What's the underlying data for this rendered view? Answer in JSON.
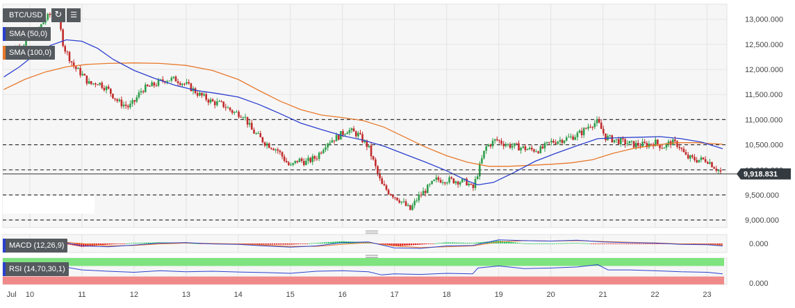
{
  "symbol": "BTC/USD",
  "toolbar": {
    "reload_icon": "reload-icon",
    "settings_icon": "bars-icon"
  },
  "indicators": {
    "sma50": {
      "label": "SMA (50,0)",
      "color": "#2b3fcf"
    },
    "sma100": {
      "label": "SMA (100,0)",
      "color": "#e8782a"
    },
    "macd": {
      "label": "MACD (12,26,9)",
      "axis_label": "0.000"
    },
    "rsi": {
      "label": "RSI (14,70,30,1)",
      "axis_label": "0.000"
    }
  },
  "chart_data": {
    "type": "candlestick",
    "price_axis": {
      "ticks": [
        "13,000.000",
        "12,500.000",
        "12,000.000",
        "11,500.000",
        "11,000.000",
        "10,500.000",
        "10,000.000",
        "9,500.000",
        "9,000.000"
      ],
      "tick_values": [
        13000,
        12500,
        12000,
        11500,
        11000,
        10500,
        10000,
        9500,
        9000
      ],
      "ylim": [
        8850,
        13300
      ]
    },
    "current_price": {
      "value": 9918.831,
      "label": "9,918.831"
    },
    "dashed_levels": [
      11000,
      10500,
      10000,
      9500,
      9000
    ],
    "x_axis": {
      "labels": [
        "Jul",
        "10",
        "11",
        "12",
        "13",
        "14",
        "15",
        "16",
        "17",
        "18",
        "19",
        "20",
        "21",
        "22",
        "23"
      ],
      "label_positions": [
        -0.35,
        0,
        1,
        2,
        3,
        4,
        5,
        6,
        7,
        8,
        9,
        10,
        11,
        12,
        13
      ],
      "xlim": [
        -0.52,
        13.38
      ]
    },
    "price_path": [
      [
        -0.5,
        12350
      ],
      [
        -0.2,
        12450
      ],
      [
        0.1,
        12700
      ],
      [
        0.3,
        13000
      ],
      [
        0.5,
        13200
      ],
      [
        0.55,
        13000
      ],
      [
        0.65,
        12450
      ],
      [
        0.85,
        12050
      ],
      [
        1.0,
        11900
      ],
      [
        1.15,
        11700
      ],
      [
        1.3,
        11750
      ],
      [
        1.5,
        11600
      ],
      [
        1.7,
        11350
      ],
      [
        1.9,
        11250
      ],
      [
        2.0,
        11350
      ],
      [
        2.15,
        11600
      ],
      [
        2.4,
        11700
      ],
      [
        2.6,
        11800
      ],
      [
        2.8,
        11800
      ],
      [
        3.0,
        11700
      ],
      [
        3.25,
        11500
      ],
      [
        3.5,
        11350
      ],
      [
        3.7,
        11300
      ],
      [
        3.9,
        11150
      ],
      [
        4.1,
        11100
      ],
      [
        4.25,
        10800
      ],
      [
        4.5,
        10550
      ],
      [
        4.75,
        10400
      ],
      [
        5.0,
        10050
      ],
      [
        5.15,
        10200
      ],
      [
        5.3,
        10150
      ],
      [
        5.5,
        10250
      ],
      [
        5.7,
        10550
      ],
      [
        5.9,
        10650
      ],
      [
        6.1,
        10800
      ],
      [
        6.3,
        10700
      ],
      [
        6.5,
        10450
      ],
      [
        6.65,
        10000
      ],
      [
        6.75,
        9700
      ],
      [
        6.9,
        9550
      ],
      [
        7.1,
        9400
      ],
      [
        7.3,
        9200
      ],
      [
        7.45,
        9450
      ],
      [
        7.6,
        9600
      ],
      [
        7.8,
        9800
      ],
      [
        8.0,
        9800
      ],
      [
        8.2,
        9780
      ],
      [
        8.4,
        9750
      ],
      [
        8.5,
        9600
      ],
      [
        8.6,
        9950
      ],
      [
        8.75,
        10450
      ],
      [
        8.95,
        10600
      ],
      [
        9.15,
        10500
      ],
      [
        9.4,
        10450
      ],
      [
        9.6,
        10400
      ],
      [
        9.8,
        10400
      ],
      [
        10.0,
        10550
      ],
      [
        10.2,
        10600
      ],
      [
        10.4,
        10650
      ],
      [
        10.6,
        10750
      ],
      [
        10.75,
        10900
      ],
      [
        10.9,
        10950
      ],
      [
        11.05,
        10650
      ],
      [
        11.2,
        10600
      ],
      [
        11.4,
        10550
      ],
      [
        11.6,
        10500
      ],
      [
        11.85,
        10500
      ],
      [
        12.0,
        10550
      ],
      [
        12.15,
        10450
      ],
      [
        12.3,
        10550
      ],
      [
        12.45,
        10500
      ],
      [
        12.6,
        10250
      ],
      [
        12.8,
        10200
      ],
      [
        13.0,
        10200
      ],
      [
        13.15,
        10050
      ],
      [
        13.3,
        9918
      ]
    ],
    "sma50": [
      [
        -0.5,
        11850
      ],
      [
        -0.2,
        12050
      ],
      [
        0.1,
        12300
      ],
      [
        0.4,
        12480
      ],
      [
        0.7,
        12590
      ],
      [
        1.0,
        12560
      ],
      [
        1.3,
        12420
      ],
      [
        1.6,
        12200
      ],
      [
        2.0,
        11980
      ],
      [
        2.4,
        11820
      ],
      [
        2.8,
        11680
      ],
      [
        3.2,
        11580
      ],
      [
        3.6,
        11520
      ],
      [
        4.0,
        11450
      ],
      [
        4.4,
        11300
      ],
      [
        4.8,
        11120
      ],
      [
        5.2,
        10930
      ],
      [
        5.6,
        10800
      ],
      [
        6.0,
        10680
      ],
      [
        6.4,
        10590
      ],
      [
        6.8,
        10470
      ],
      [
        7.2,
        10310
      ],
      [
        7.6,
        10150
      ],
      [
        8.0,
        9980
      ],
      [
        8.4,
        9780
      ],
      [
        8.6,
        9700
      ],
      [
        8.9,
        9750
      ],
      [
        9.3,
        9950
      ],
      [
        9.7,
        10170
      ],
      [
        10.1,
        10330
      ],
      [
        10.5,
        10480
      ],
      [
        10.9,
        10620
      ],
      [
        11.3,
        10640
      ],
      [
        11.7,
        10650
      ],
      [
        12.1,
        10660
      ],
      [
        12.5,
        10620
      ],
      [
        12.9,
        10550
      ],
      [
        13.3,
        10420
      ]
    ],
    "sma100": [
      [
        -0.5,
        11600
      ],
      [
        -0.1,
        11800
      ],
      [
        0.3,
        11950
      ],
      [
        0.7,
        12050
      ],
      [
        1.1,
        12100
      ],
      [
        1.5,
        12120
      ],
      [
        2.0,
        12130
      ],
      [
        2.5,
        12120
      ],
      [
        3.0,
        12080
      ],
      [
        3.5,
        11980
      ],
      [
        4.0,
        11800
      ],
      [
        4.4,
        11580
      ],
      [
        4.8,
        11370
      ],
      [
        5.2,
        11200
      ],
      [
        5.6,
        11090
      ],
      [
        6.0,
        11040
      ],
      [
        6.4,
        10980
      ],
      [
        6.8,
        10850
      ],
      [
        7.2,
        10650
      ],
      [
        7.6,
        10450
      ],
      [
        8.0,
        10280
      ],
      [
        8.4,
        10150
      ],
      [
        8.8,
        10070
      ],
      [
        9.2,
        10070
      ],
      [
        9.6,
        10090
      ],
      [
        10.0,
        10110
      ],
      [
        10.4,
        10140
      ],
      [
        10.8,
        10200
      ],
      [
        11.2,
        10330
      ],
      [
        11.6,
        10430
      ],
      [
        12.0,
        10490
      ],
      [
        12.4,
        10540
      ],
      [
        12.8,
        10540
      ],
      [
        13.3,
        10510
      ]
    ],
    "rsi_path": [
      [
        -0.5,
        0.62
      ],
      [
        0.0,
        0.66
      ],
      [
        0.5,
        0.72
      ],
      [
        1.0,
        0.55
      ],
      [
        1.5,
        0.5
      ],
      [
        2.0,
        0.46
      ],
      [
        2.5,
        0.52
      ],
      [
        3.0,
        0.48
      ],
      [
        3.5,
        0.5
      ],
      [
        4.0,
        0.47
      ],
      [
        4.5,
        0.45
      ],
      [
        5.0,
        0.42
      ],
      [
        5.5,
        0.5
      ],
      [
        6.0,
        0.52
      ],
      [
        6.5,
        0.48
      ],
      [
        6.75,
        0.36
      ],
      [
        7.0,
        0.4
      ],
      [
        7.5,
        0.38
      ],
      [
        8.0,
        0.42
      ],
      [
        8.5,
        0.4
      ],
      [
        8.6,
        0.62
      ],
      [
        9.0,
        0.7
      ],
      [
        9.5,
        0.6
      ],
      [
        10.0,
        0.62
      ],
      [
        10.5,
        0.66
      ],
      [
        10.9,
        0.75
      ],
      [
        11.1,
        0.55
      ],
      [
        11.5,
        0.55
      ],
      [
        12.0,
        0.52
      ],
      [
        12.5,
        0.48
      ],
      [
        13.0,
        0.46
      ],
      [
        13.3,
        0.4
      ]
    ],
    "macd_line": [
      [
        -0.5,
        0.2
      ],
      [
        0.5,
        0.35
      ],
      [
        1.0,
        -0.3
      ],
      [
        1.5,
        -0.4
      ],
      [
        2.0,
        -0.2
      ],
      [
        2.5,
        0.05
      ],
      [
        3.0,
        0.1
      ],
      [
        3.5,
        -0.05
      ],
      [
        4.0,
        -0.1
      ],
      [
        4.5,
        -0.3
      ],
      [
        5.0,
        -0.45
      ],
      [
        5.5,
        -0.3
      ],
      [
        6.0,
        0.1
      ],
      [
        6.5,
        0.2
      ],
      [
        7.0,
        -0.55
      ],
      [
        7.5,
        -0.6
      ],
      [
        8.0,
        -0.3
      ],
      [
        8.5,
        -0.25
      ],
      [
        9.0,
        0.45
      ],
      [
        9.5,
        0.35
      ],
      [
        10.0,
        0.3
      ],
      [
        10.5,
        0.4
      ],
      [
        11.0,
        0.2
      ],
      [
        11.5,
        0.1
      ],
      [
        12.0,
        0.05
      ],
      [
        12.5,
        -0.1
      ],
      [
        13.0,
        -0.15
      ],
      [
        13.3,
        -0.3
      ]
    ],
    "macd_signal": [
      [
        -0.5,
        0.1
      ],
      [
        0.5,
        0.25
      ],
      [
        1.0,
        0.0
      ],
      [
        1.5,
        -0.3
      ],
      [
        2.0,
        -0.25
      ],
      [
        2.5,
        -0.05
      ],
      [
        3.0,
        0.05
      ],
      [
        3.5,
        0.0
      ],
      [
        4.0,
        -0.05
      ],
      [
        4.5,
        -0.2
      ],
      [
        5.0,
        -0.35
      ],
      [
        5.5,
        -0.35
      ],
      [
        6.0,
        -0.1
      ],
      [
        6.5,
        0.1
      ],
      [
        7.0,
        -0.3
      ],
      [
        7.5,
        -0.5
      ],
      [
        8.0,
        -0.4
      ],
      [
        8.5,
        -0.3
      ],
      [
        9.0,
        0.2
      ],
      [
        9.5,
        0.35
      ],
      [
        10.0,
        0.3
      ],
      [
        10.5,
        0.35
      ],
      [
        11.0,
        0.25
      ],
      [
        11.5,
        0.15
      ],
      [
        12.0,
        0.08
      ],
      [
        12.5,
        -0.05
      ],
      [
        13.0,
        -0.1
      ],
      [
        13.3,
        -0.2
      ]
    ]
  }
}
